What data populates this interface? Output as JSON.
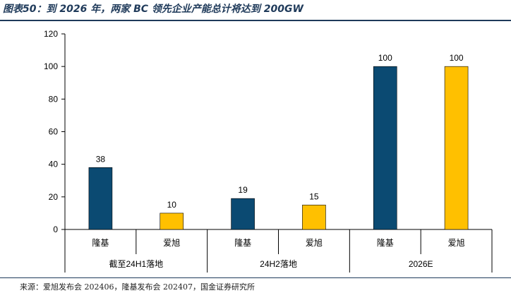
{
  "figure": {
    "title": "图表50：到 2026 年，两家 BC 领先企业产能总计将达到 200GW",
    "source": "来源：爱旭发布会 202406，隆基发布会 202407，国金证券研究所"
  },
  "chart_data": {
    "type": "bar",
    "title": "",
    "xlabel": "",
    "ylabel": "",
    "ylim": [
      0,
      120
    ],
    "yticks": [
      0,
      20,
      40,
      60,
      80,
      100,
      120
    ],
    "groups": [
      "截至24H1落地",
      "24H2落地",
      "2026E"
    ],
    "categories": [
      "隆基",
      "爱旭",
      "隆基",
      "爱旭",
      "隆基",
      "爱旭"
    ],
    "values": [
      38,
      10,
      19,
      15,
      100,
      100
    ],
    "bar_series": [
      "longi",
      "aiko",
      "longi",
      "aiko",
      "longi",
      "aiko"
    ],
    "series_colors": {
      "longi": "#0b4a72",
      "aiko": "#ffc000"
    },
    "grid": false,
    "legend": "none",
    "data_labels": true
  }
}
